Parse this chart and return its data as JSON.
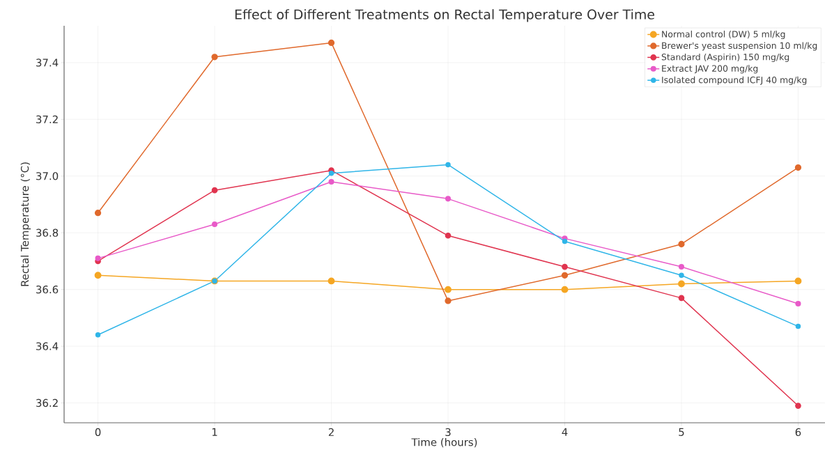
{
  "chart_data": {
    "type": "line",
    "title": "Effect of Different Treatments on Rectal Temperature Over Time",
    "xlabel": "Time (hours)",
    "ylabel": "Rectal Temperature (°C)",
    "x": [
      0,
      1,
      2,
      3,
      4,
      5,
      6
    ],
    "series": [
      {
        "name": "Normal control (DW) 5 ml/kg",
        "color": "#f5a623",
        "values": [
          36.65,
          36.63,
          36.63,
          36.6,
          36.6,
          36.62,
          36.63
        ]
      },
      {
        "name": "Brewer's yeast suspension 10 ml/kg",
        "color": "#e0692c",
        "values": [
          36.87,
          37.42,
          37.47,
          36.56,
          36.65,
          36.76,
          37.03
        ]
      },
      {
        "name": "Standard (Aspirin) 150 mg/kg",
        "color": "#e0344f",
        "values": [
          36.7,
          36.95,
          37.02,
          36.79,
          36.68,
          36.57,
          36.19
        ]
      },
      {
        "name": "Extract JAV 200 mg/kg",
        "color": "#e85ac8",
        "values": [
          36.71,
          36.83,
          36.98,
          36.92,
          36.78,
          36.68,
          36.55
        ]
      },
      {
        "name": "Isolated compound ICFJ 40 mg/kg",
        "color": "#2fb5e8",
        "values": [
          36.44,
          36.63,
          37.01,
          37.04,
          36.77,
          36.65,
          36.47
        ]
      }
    ],
    "xlim": [
      -0.29,
      6.23
    ],
    "ylim": [
      36.13,
      37.53
    ],
    "xticks": [
      0,
      1,
      2,
      3,
      4,
      5,
      6
    ],
    "yticks": [
      {
        "value": 36.2,
        "label": "36.2"
      },
      {
        "value": 36.4,
        "label": "36.4"
      },
      {
        "value": 36.6,
        "label": "36.6"
      },
      {
        "value": 36.8,
        "label": "36.8"
      },
      {
        "value": 37.0,
        "label": "37.0"
      },
      {
        "value": 37.2,
        "label": "37.2"
      },
      {
        "value": 37.4,
        "label": "37.4"
      }
    ],
    "grid": true,
    "legend": "top right",
    "marker": "circle",
    "line_style": "solid"
  }
}
